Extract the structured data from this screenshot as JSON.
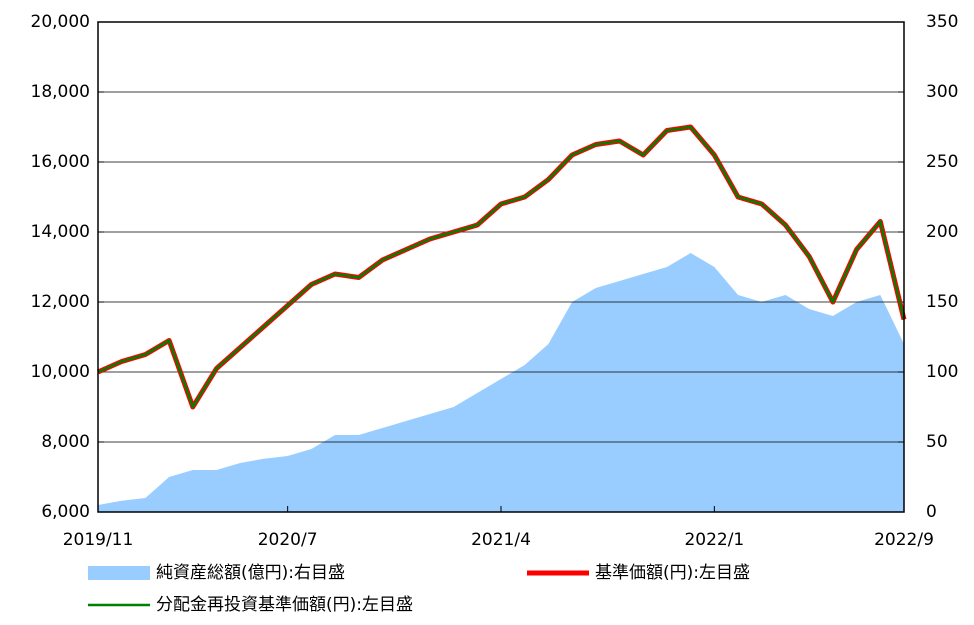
{
  "chart_data": {
    "type": "line",
    "categories": [
      "2019/11",
      null,
      null,
      null,
      null,
      null,
      null,
      null,
      "2020/7",
      null,
      null,
      null,
      null,
      null,
      null,
      null,
      null,
      "2021/4",
      null,
      null,
      null,
      null,
      null,
      null,
      null,
      null,
      "2022/1",
      null,
      null,
      null,
      null,
      null,
      null,
      null,
      "2022/9"
    ],
    "series": [
      {
        "name": "純資産総額(億円):右目盛",
        "type": "area",
        "axis": "y2",
        "color": "#99ccff",
        "values": [
          5,
          8,
          10,
          25,
          30,
          30,
          35,
          38,
          40,
          45,
          55,
          55,
          60,
          65,
          70,
          75,
          85,
          95,
          105,
          120,
          150,
          160,
          165,
          170,
          175,
          185,
          175,
          155,
          150,
          155,
          145,
          140,
          150,
          155,
          120
        ]
      },
      {
        "name": "基準価額(円):左目盛",
        "type": "line",
        "color": "#ff0000",
        "values": [
          10000,
          10300,
          10500,
          10900,
          9000,
          10100,
          10700,
          11300,
          11900,
          12500,
          12800,
          12700,
          13200,
          13500,
          13800,
          14000,
          14200,
          14800,
          15000,
          15500,
          16200,
          16500,
          16600,
          16200,
          16900,
          17000,
          16200,
          15000,
          14800,
          14200,
          13300,
          12000,
          13500,
          14300,
          11500
        ]
      },
      {
        "name": "分配金再投資基準価額(円):左目盛",
        "type": "line",
        "color": "#008000",
        "values": [
          10000,
          10300,
          10500,
          10900,
          9000,
          10100,
          10700,
          11300,
          11900,
          12500,
          12800,
          12700,
          13200,
          13500,
          13800,
          14000,
          14200,
          14800,
          15000,
          15500,
          16200,
          16500,
          16600,
          16200,
          16900,
          17000,
          16200,
          15000,
          14800,
          14200,
          13300,
          12000,
          13500,
          14300,
          11500
        ]
      }
    ],
    "ylim": [
      6000,
      20000
    ],
    "yticks": [
      {
        "value": 6000,
        "label": "6,000"
      },
      {
        "value": 8000,
        "label": "8,000"
      },
      {
        "value": 10000,
        "label": "10,000"
      },
      {
        "value": 12000,
        "label": "12,000"
      },
      {
        "value": 14000,
        "label": "14,000"
      },
      {
        "value": 16000,
        "label": "16,000"
      },
      {
        "value": 18000,
        "label": "18,000"
      },
      {
        "value": 20000,
        "label": "20,000"
      }
    ],
    "y2lim": [
      0,
      350
    ],
    "y2ticks": [
      0,
      50,
      100,
      150,
      200,
      250,
      300,
      350
    ],
    "grid": true
  }
}
